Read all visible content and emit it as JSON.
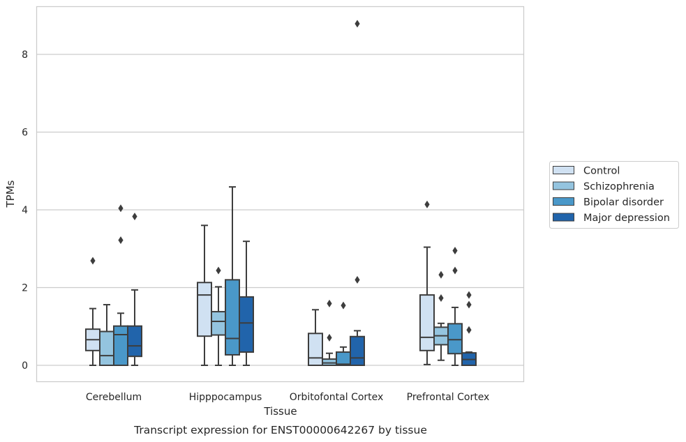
{
  "caption": "Transcript expression for ENST00000642267 by tissue",
  "chart_data": {
    "type": "box",
    "xlabel": "Tissue",
    "ylabel": "TPMs",
    "ylim": [
      -0.43,
      9.25
    ],
    "yticks": [
      0,
      2,
      4,
      6,
      8
    ],
    "grid": "horizontal",
    "legend_position": "right",
    "categories": [
      "Cerebellum",
      "Hipppocampus",
      "Orbitofontal Cortex",
      "Prefrontal Cortex"
    ],
    "series": [
      {
        "name": "Control",
        "color": "#d0e1f2",
        "boxes": [
          {
            "whislo": 0.0,
            "q1": 0.38,
            "med": 0.66,
            "q3": 0.93,
            "whishi": 1.46,
            "fliers": [
              2.69
            ]
          },
          {
            "whislo": 0.0,
            "q1": 0.75,
            "med": 1.81,
            "q3": 2.13,
            "whishi": 3.6,
            "fliers": []
          },
          {
            "whislo": 0.0,
            "q1": 0.0,
            "med": 0.19,
            "q3": 0.82,
            "whishi": 1.43,
            "fliers": []
          },
          {
            "whislo": 0.02,
            "q1": 0.38,
            "med": 0.72,
            "q3": 1.81,
            "whishi": 3.04,
            "fliers": [
              4.14
            ]
          }
        ]
      },
      {
        "name": "Schizophrenia",
        "color": "#94c4df",
        "boxes": [
          {
            "whislo": 0.0,
            "q1": 0.0,
            "med": 0.25,
            "q3": 0.87,
            "whishi": 1.56,
            "fliers": []
          },
          {
            "whislo": 0.0,
            "q1": 0.78,
            "med": 1.13,
            "q3": 1.38,
            "whishi": 2.02,
            "fliers": [
              2.44
            ]
          },
          {
            "whislo": 0.0,
            "q1": 0.0,
            "med": 0.06,
            "q3": 0.16,
            "whishi": 0.31,
            "fliers": [
              0.71,
              1.59
            ]
          },
          {
            "whislo": 0.13,
            "q1": 0.53,
            "med": 0.76,
            "q3": 0.98,
            "whishi": 1.08,
            "fliers": [
              1.73,
              2.33
            ]
          }
        ]
      },
      {
        "name": "Bipolar disorder",
        "color": "#4a98c9",
        "boxes": [
          {
            "whislo": 0.0,
            "q1": 0.0,
            "med": 0.79,
            "q3": 1.01,
            "whishi": 1.34,
            "fliers": [
              3.22,
              4.04
            ]
          },
          {
            "whislo": 0.0,
            "q1": 0.27,
            "med": 0.69,
            "q3": 2.2,
            "whishi": 4.59,
            "fliers": []
          },
          {
            "whislo": 0.0,
            "q1": 0.0,
            "med": 0.03,
            "q3": 0.34,
            "whishi": 0.47,
            "fliers": [
              1.54
            ]
          },
          {
            "whislo": 0.0,
            "q1": 0.3,
            "med": 0.66,
            "q3": 1.07,
            "whishi": 1.49,
            "fliers": [
              2.44,
              2.95
            ]
          }
        ]
      },
      {
        "name": "Major depression",
        "color": "#2164ab",
        "boxes": [
          {
            "whislo": 0.0,
            "q1": 0.23,
            "med": 0.5,
            "q3": 1.01,
            "whishi": 1.94,
            "fliers": [
              3.83
            ]
          },
          {
            "whislo": 0.0,
            "q1": 0.34,
            "med": 1.09,
            "q3": 1.76,
            "whishi": 3.19,
            "fliers": []
          },
          {
            "whislo": 0.0,
            "q1": 0.0,
            "med": 0.19,
            "q3": 0.74,
            "whishi": 0.89,
            "fliers": [
              2.2,
              8.79
            ]
          },
          {
            "whislo": 0.0,
            "q1": 0.0,
            "med": 0.15,
            "q3": 0.32,
            "whishi": 0.34,
            "fliers": [
              0.91,
              1.56,
              1.81
            ]
          }
        ]
      }
    ]
  }
}
